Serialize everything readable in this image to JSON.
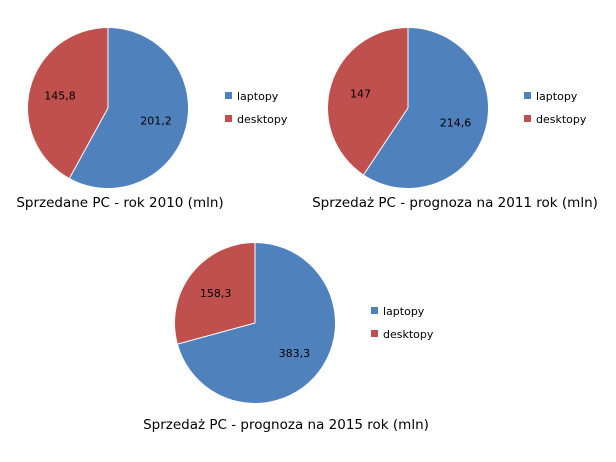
{
  "chart_data": [
    {
      "type": "pie",
      "title": "Sprzedane PC - rok 2010 (mln)",
      "categories": [
        "laptopy",
        "desktopy"
      ],
      "values": [
        201.2,
        145.8
      ],
      "data_labels": [
        "201,2",
        "145,8"
      ],
      "colors": [
        "#4F81BD",
        "#C0504D"
      ],
      "legend": "right"
    },
    {
      "type": "pie",
      "title": "Sprzedaż PC - prognoza na 2011 rok (mln)",
      "categories": [
        "laptopy",
        "desktopy"
      ],
      "values": [
        214.6,
        147
      ],
      "data_labels": [
        "214,6",
        "147"
      ],
      "colors": [
        "#4F81BD",
        "#C0504D"
      ],
      "legend": "right"
    },
    {
      "type": "pie",
      "title": "Sprzedaż PC - prognoza na 2015 rok (mln)",
      "categories": [
        "laptopy",
        "desktopy"
      ],
      "values": [
        383.3,
        158.3
      ],
      "data_labels": [
        "383,3",
        "158,3"
      ],
      "colors": [
        "#4F81BD",
        "#C0504D"
      ],
      "legend": "right"
    }
  ]
}
